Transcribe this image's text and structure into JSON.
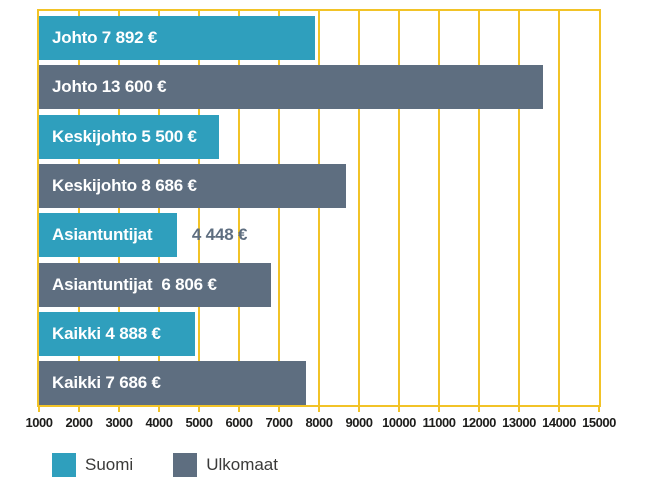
{
  "chart_data": {
    "type": "bar",
    "orientation": "horizontal",
    "title": "",
    "x_axis": {
      "min": 1000,
      "max": 15000,
      "tick_interval": 1000,
      "tick_labels": [
        "1000",
        "2000",
        "3000",
        "4000",
        "5000",
        "6000",
        "7000",
        "8000",
        "9000",
        "10000",
        "11000",
        "12000",
        "13000",
        "14000",
        "15000"
      ]
    },
    "bars": [
      {
        "label": "Johto 7 892 €",
        "value": 7892,
        "series": "Suomi"
      },
      {
        "label": "Johto 13 600 €",
        "value": 13600,
        "series": "Ulkomaat"
      },
      {
        "label": "Keskijohto 5 500 €",
        "value": 5500,
        "series": "Suomi"
      },
      {
        "label": "Keskijohto 8 686 €",
        "value": 8686,
        "series": "Ulkomaat"
      },
      {
        "label": "Asiantuntijat",
        "value": 4448,
        "series": "Suomi",
        "outside_value": "4 448 €"
      },
      {
        "label": "Asiantuntijat  6 806 €",
        "value": 6806,
        "series": "Ulkomaat"
      },
      {
        "label": "Kaikki 4 888 €",
        "value": 4888,
        "series": "Suomi"
      },
      {
        "label": "Kaikki 7 686 €",
        "value": 7686,
        "series": "Ulkomaat"
      }
    ],
    "legend": [
      {
        "label": "Suomi",
        "color": "#2f9fbd"
      },
      {
        "label": "Ulkomaat",
        "color": "#5e6e80"
      }
    ],
    "grid": {
      "show": true,
      "color": "#f2c327"
    }
  },
  "colors": {
    "background": "#ffffff",
    "bar_suomi": "#2f9fbd",
    "bar_ulkomaat": "#5e6e80",
    "grid": "#f2c327",
    "bar_text": "#ffffff",
    "outside_value_text": "#5e6e80",
    "axis_text": "#1d1d1b",
    "legend_text": "#3a3a39"
  }
}
